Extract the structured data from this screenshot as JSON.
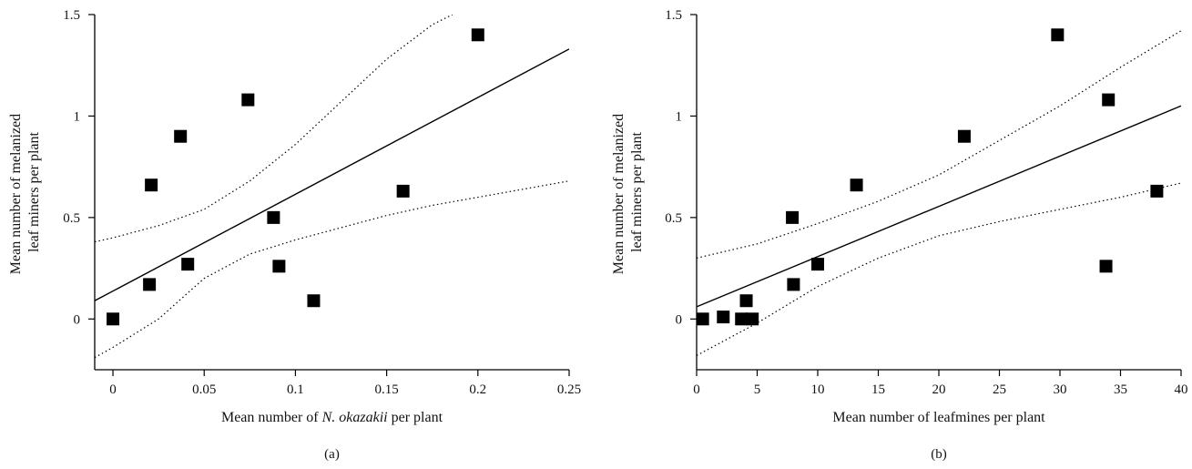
{
  "chart_data": [
    {
      "type": "scatter",
      "panel_label": "(a)",
      "xlabel_pre": "Mean number of ",
      "xlabel_italic": "N. okazakii",
      "xlabel_post": " per plant",
      "ylabel_lines": [
        "Mean number of melanized",
        "leaf miners per plant"
      ],
      "xlim": [
        -0.01,
        0.25
      ],
      "ylim": [
        -0.25,
        1.5
      ],
      "xticks": [
        0,
        0.05,
        0.1,
        0.15,
        0.2,
        0.25
      ],
      "xtick_labels": [
        "0",
        "0.05",
        "0.1",
        "0.15",
        "0.2",
        "0.25"
      ],
      "yticks": [
        0,
        0.5,
        1,
        1.5
      ],
      "ytick_labels": [
        "0",
        "0.5",
        "1",
        "1.5"
      ],
      "points": [
        {
          "x": 0.0,
          "y": 0.0
        },
        {
          "x": 0.02,
          "y": 0.17
        },
        {
          "x": 0.021,
          "y": 0.66
        },
        {
          "x": 0.037,
          "y": 0.9
        },
        {
          "x": 0.041,
          "y": 0.27
        },
        {
          "x": 0.074,
          "y": 1.08
        },
        {
          "x": 0.088,
          "y": 0.5
        },
        {
          "x": 0.091,
          "y": 0.26
        },
        {
          "x": 0.11,
          "y": 0.09
        },
        {
          "x": 0.159,
          "y": 0.63
        },
        {
          "x": 0.2,
          "y": 1.4
        }
      ],
      "fit_line": [
        {
          "x": -0.01,
          "y": 0.09
        },
        {
          "x": 0.25,
          "y": 1.33
        }
      ],
      "ci_upper": [
        {
          "x": -0.01,
          "y": 0.38
        },
        {
          "x": 0.0,
          "y": 0.4
        },
        {
          "x": 0.025,
          "y": 0.46
        },
        {
          "x": 0.05,
          "y": 0.54
        },
        {
          "x": 0.075,
          "y": 0.68
        },
        {
          "x": 0.1,
          "y": 0.86
        },
        {
          "x": 0.125,
          "y": 1.07
        },
        {
          "x": 0.15,
          "y": 1.28
        },
        {
          "x": 0.175,
          "y": 1.45
        },
        {
          "x": 0.186,
          "y": 1.5
        }
      ],
      "ci_lower": [
        {
          "x": -0.01,
          "y": -0.19
        },
        {
          "x": 0.0,
          "y": -0.14
        },
        {
          "x": 0.025,
          "y": 0.0
        },
        {
          "x": 0.05,
          "y": 0.2
        },
        {
          "x": 0.075,
          "y": 0.32
        },
        {
          "x": 0.1,
          "y": 0.39
        },
        {
          "x": 0.125,
          "y": 0.45
        },
        {
          "x": 0.15,
          "y": 0.51
        },
        {
          "x": 0.175,
          "y": 0.56
        },
        {
          "x": 0.2,
          "y": 0.6
        },
        {
          "x": 0.225,
          "y": 0.64
        },
        {
          "x": 0.25,
          "y": 0.68
        }
      ]
    },
    {
      "type": "scatter",
      "panel_label": "(b)",
      "xlabel_pre": "Mean number of leafmines per plant",
      "xlabel_italic": "",
      "xlabel_post": "",
      "ylabel_lines": [
        "Mean number of melanized",
        "leaf miners per plant"
      ],
      "xlim": [
        0,
        40
      ],
      "ylim": [
        -0.25,
        1.5
      ],
      "xticks": [
        0,
        5,
        10,
        15,
        20,
        25,
        30,
        35,
        40
      ],
      "xtick_labels": [
        "0",
        "5",
        "10",
        "15",
        "20",
        "25",
        "30",
        "35",
        "40"
      ],
      "yticks": [
        0,
        0.5,
        1,
        1.5
      ],
      "ytick_labels": [
        "0",
        "0.5",
        "1",
        "1.5"
      ],
      "points": [
        {
          "x": 0.5,
          "y": 0.0
        },
        {
          "x": 2.2,
          "y": 0.01
        },
        {
          "x": 3.7,
          "y": 0.0
        },
        {
          "x": 4.1,
          "y": 0.09
        },
        {
          "x": 4.6,
          "y": 0.0
        },
        {
          "x": 7.9,
          "y": 0.5
        },
        {
          "x": 8.0,
          "y": 0.17
        },
        {
          "x": 10.0,
          "y": 0.27
        },
        {
          "x": 13.2,
          "y": 0.66
        },
        {
          "x": 22.1,
          "y": 0.9
        },
        {
          "x": 29.8,
          "y": 1.4
        },
        {
          "x": 33.8,
          "y": 0.26
        },
        {
          "x": 34.0,
          "y": 1.08
        },
        {
          "x": 38.0,
          "y": 0.63
        }
      ],
      "fit_line": [
        {
          "x": 0,
          "y": 0.06
        },
        {
          "x": 40,
          "y": 1.05
        }
      ],
      "ci_upper": [
        {
          "x": 0,
          "y": 0.3
        },
        {
          "x": 5,
          "y": 0.37
        },
        {
          "x": 10,
          "y": 0.47
        },
        {
          "x": 15,
          "y": 0.58
        },
        {
          "x": 20,
          "y": 0.71
        },
        {
          "x": 25,
          "y": 0.88
        },
        {
          "x": 30,
          "y": 1.05
        },
        {
          "x": 35,
          "y": 1.24
        },
        {
          "x": 40,
          "y": 1.42
        }
      ],
      "ci_lower": [
        {
          "x": 0,
          "y": -0.18
        },
        {
          "x": 5,
          "y": -0.02
        },
        {
          "x": 10,
          "y": 0.16
        },
        {
          "x": 15,
          "y": 0.3
        },
        {
          "x": 20,
          "y": 0.41
        },
        {
          "x": 25,
          "y": 0.48
        },
        {
          "x": 30,
          "y": 0.54
        },
        {
          "x": 35,
          "y": 0.6
        },
        {
          "x": 40,
          "y": 0.67
        }
      ]
    }
  ]
}
